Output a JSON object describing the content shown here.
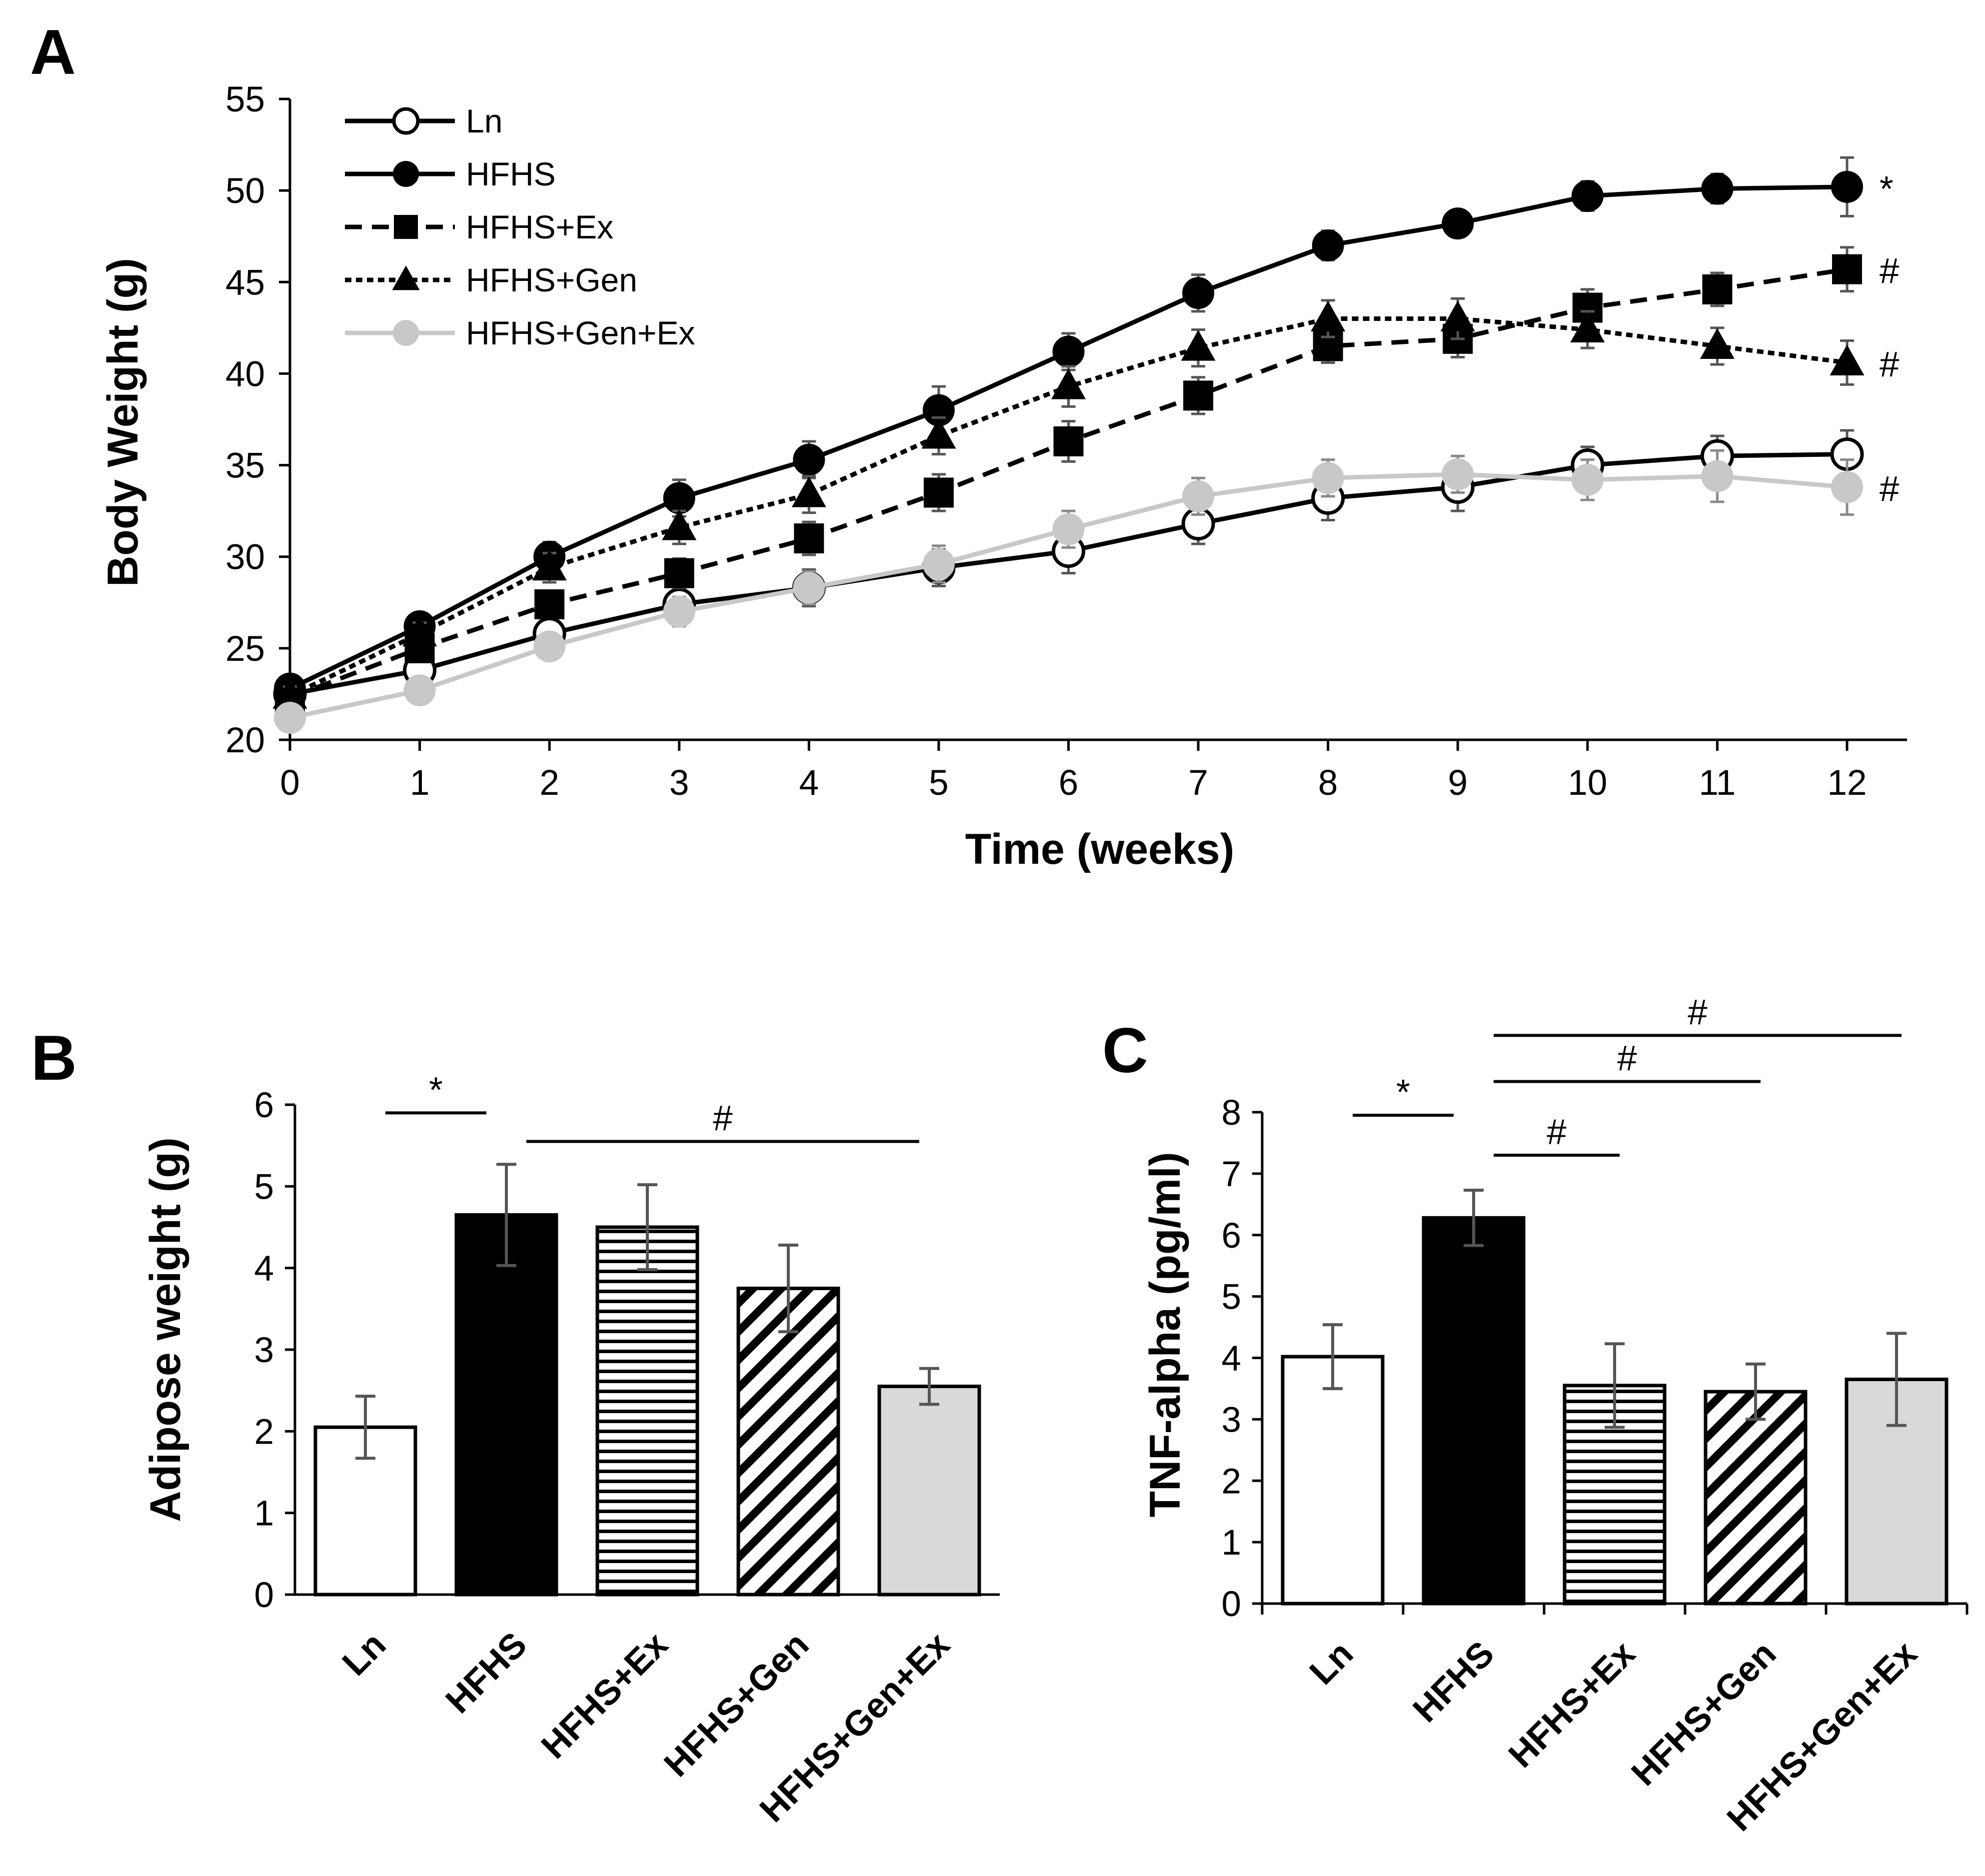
{
  "colors": {
    "black": "#000000",
    "white": "#ffffff",
    "light_gray": "#c8c8c8",
    "gray_fill": "#d9d9d9",
    "errorbar_gray": "#555555"
  },
  "chart_data": [
    {
      "panel": "A",
      "type": "line",
      "title": "",
      "xlabel": "Time (weeks)",
      "ylabel": "Body Weight (g)",
      "x": [
        0,
        1,
        2,
        3,
        4,
        5,
        6,
        7,
        8,
        9,
        10,
        11,
        12
      ],
      "xlim": [
        0,
        12.5
      ],
      "ylim": [
        20,
        55
      ],
      "yticks": [
        20,
        25,
        30,
        35,
        40,
        45,
        50,
        55
      ],
      "legend_position": "top-left",
      "series": [
        {
          "name": "Ln",
          "marker": "open-circle",
          "line": "solid",
          "color": "#000000",
          "values": [
            22.5,
            23.8,
            25.8,
            27.4,
            28.3,
            29.4,
            30.3,
            31.8,
            33.2,
            33.8,
            35.0,
            35.5,
            35.6
          ],
          "errors": [
            0.6,
            0.6,
            0.8,
            0.9,
            1.0,
            1.0,
            1.2,
            1.1,
            1.2,
            1.3,
            1.0,
            1.1,
            1.3
          ],
          "annotation": ""
        },
        {
          "name": "HFHS",
          "marker": "filled-circle",
          "line": "solid",
          "color": "#000000",
          "values": [
            22.8,
            26.2,
            30.0,
            33.2,
            35.3,
            38.0,
            41.2,
            44.4,
            47.0,
            48.2,
            49.7,
            50.1,
            50.2
          ],
          "errors": [
            0.5,
            0.7,
            0.8,
            1.0,
            1.0,
            1.3,
            1.0,
            1.0,
            0.8,
            0.7,
            0.8,
            0.8,
            1.6
          ],
          "annotation": "*"
        },
        {
          "name": "HFHS+Ex",
          "marker": "filled-square",
          "line": "dashed",
          "color": "#000000",
          "values": [
            22.3,
            25.0,
            27.4,
            29.1,
            31.0,
            33.5,
            36.3,
            38.8,
            41.5,
            41.9,
            43.6,
            44.6,
            45.7
          ],
          "errors": [
            0.5,
            0.6,
            0.7,
            0.8,
            0.9,
            1.0,
            1.1,
            1.0,
            0.9,
            1.0,
            1.0,
            0.9,
            1.2
          ],
          "annotation": "#"
        },
        {
          "name": "HFHS+Gen",
          "marker": "filled-triangle",
          "line": "dotted",
          "color": "#000000",
          "values": [
            22.4,
            25.8,
            29.4,
            31.6,
            33.4,
            36.6,
            39.3,
            41.4,
            43.0,
            43.0,
            42.4,
            41.5,
            40.6
          ],
          "errors": [
            0.5,
            0.6,
            0.8,
            0.9,
            1.0,
            1.0,
            1.1,
            1.0,
            1.0,
            1.1,
            1.0,
            1.0,
            1.2
          ],
          "annotation": "#"
        },
        {
          "name": "HFHS+Gen+Ex",
          "marker": "filled-circle",
          "line": "solid",
          "color": "#c8c8c8",
          "values": [
            21.2,
            22.7,
            25.1,
            27.0,
            28.3,
            29.6,
            31.5,
            33.3,
            34.3,
            34.5,
            34.2,
            34.4,
            33.8
          ],
          "errors": [
            0.5,
            0.6,
            0.7,
            0.8,
            0.9,
            1.0,
            1.0,
            1.0,
            1.0,
            1.0,
            1.1,
            1.4,
            1.5
          ],
          "annotation": "#"
        }
      ]
    },
    {
      "panel": "B",
      "type": "bar",
      "title": "",
      "xlabel": "",
      "ylabel": "Adipose weight (g)",
      "categories": [
        "Ln",
        "HFHS",
        "HFHS+Ex",
        "HFHS+Gen",
        "HFHS+Gen+Ex"
      ],
      "values": [
        2.05,
        4.65,
        4.5,
        3.75,
        2.55
      ],
      "errors": [
        0.38,
        0.62,
        0.52,
        0.53,
        0.22
      ],
      "fills": [
        "white",
        "black",
        "horizontal-stripes",
        "diagonal-stripes",
        "gray"
      ],
      "ylim": [
        0,
        6
      ],
      "yticks": [
        0,
        1,
        2,
        3,
        4,
        5,
        6
      ],
      "significance": [
        {
          "from": 0,
          "to": 1,
          "label": "*",
          "level": 5.9
        },
        {
          "from": 1,
          "to": 4,
          "label": "#",
          "level": 5.55
        }
      ]
    },
    {
      "panel": "C",
      "type": "bar",
      "title": "",
      "xlabel": "",
      "ylabel": "TNF-alpha (pg/ml)",
      "categories": [
        "Ln",
        "HFHS",
        "HFHS+Ex",
        "HFHS+Gen",
        "HFHS+Gen+Ex"
      ],
      "values": [
        4.02,
        6.28,
        3.55,
        3.45,
        3.65
      ],
      "errors": [
        0.52,
        0.45,
        0.68,
        0.45,
        0.75
      ],
      "fills": [
        "white",
        "black",
        "horizontal-stripes",
        "diagonal-stripes",
        "gray"
      ],
      "ylim": [
        0,
        8
      ],
      "yticks": [
        0,
        1,
        2,
        3,
        4,
        5,
        6,
        7,
        8
      ],
      "significance": [
        {
          "from": 0,
          "to": 1,
          "label": "*",
          "level": 7.95
        },
        {
          "from": 1,
          "to": 2,
          "label": "#",
          "level": 7.3
        },
        {
          "from": 1,
          "to": 3,
          "label": "#",
          "level": 8.5
        },
        {
          "from": 1,
          "to": 4,
          "label": "#",
          "level": 9.25
        }
      ]
    }
  ]
}
